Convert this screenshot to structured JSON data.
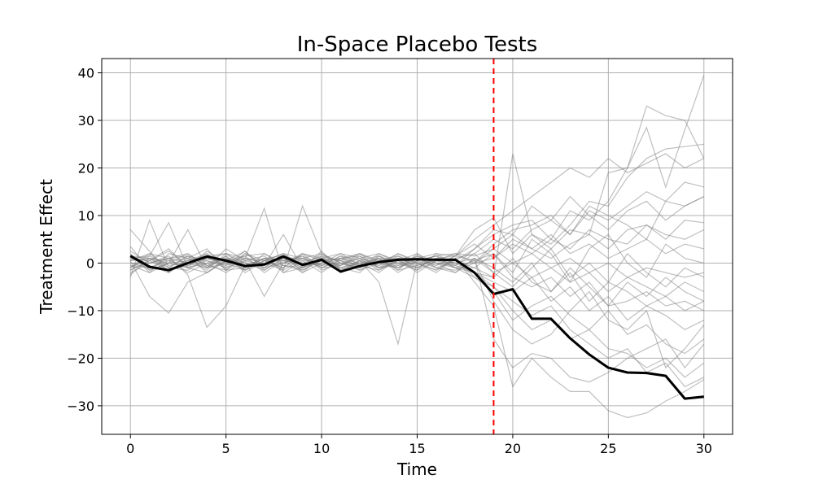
{
  "chart_data": {
    "type": "line",
    "title": "In-Space Placebo Tests",
    "xlabel": "Time",
    "ylabel": "Treatment Effect",
    "xlim": [
      -1.5,
      31.5
    ],
    "ylim": [
      -36,
      43
    ],
    "xticks": [
      0,
      5,
      10,
      15,
      20,
      25,
      30
    ],
    "yticks": [
      -30,
      -20,
      -10,
      0,
      10,
      20,
      30,
      40
    ],
    "grid": true,
    "treatment_time": 19,
    "colors": {
      "treated": "#000000",
      "placebo": "#808080",
      "treatment_line": "#ff0000"
    },
    "x": [
      0,
      1,
      2,
      3,
      4,
      5,
      6,
      7,
      8,
      9,
      10,
      11,
      12,
      13,
      14,
      15,
      16,
      17,
      18,
      19,
      20,
      21,
      22,
      23,
      24,
      25,
      26,
      27,
      28,
      29,
      30
    ],
    "treated": {
      "values": [
        1.5,
        -0.8,
        -1.5,
        0.0,
        1.4,
        0.5,
        -0.6,
        -0.3,
        1.4,
        -0.4,
        0.7,
        -1.8,
        -0.6,
        0.2,
        0.7,
        0.8,
        0.7,
        0.7,
        -2.0,
        -6.5,
        -5.5,
        -11.7,
        -11.7,
        -15.8,
        -19.2,
        -22.0,
        -23.0,
        -23.1,
        -23.7,
        -28.5,
        -28.1
      ]
    },
    "placebos": [
      {
        "values": [
          7.0,
          2.5,
          -2.0,
          1.0,
          3.0,
          -1.5,
          2.0,
          0.5,
          -1.0,
          2.0,
          1.0,
          -0.5,
          1.5,
          -1.0,
          0.5,
          1.0,
          -0.5,
          1.5,
          7.0,
          9.5,
          2.0,
          6.0,
          4.0,
          8.0,
          13.0,
          12.0,
          18.0,
          22.0,
          24.0,
          24.5,
          25.0
        ]
      },
      {
        "values": [
          -3.0,
          9.0,
          -1.0,
          1.5,
          -2.0,
          0.5,
          2.5,
          -1.5,
          1.0,
          -1.0,
          2.0,
          0.0,
          -1.5,
          1.0,
          0.5,
          -1.0,
          1.0,
          -0.5,
          3.0,
          6.0,
          8.0,
          9.0,
          5.0,
          11.0,
          9.0,
          13.0,
          20.0,
          33.0,
          31.0,
          30.0,
          22.0
        ]
      },
      {
        "values": [
          0.5,
          -7.0,
          -10.5,
          -4.0,
          -2.0,
          1.0,
          -1.5,
          0.5,
          2.0,
          1.0,
          -0.5,
          1.5,
          0.5,
          -1.0,
          1.5,
          0.0,
          -1.5,
          1.0,
          -4.0,
          -9.0,
          -26.0,
          -20.0,
          -24.0,
          -27.0,
          -27.0,
          -31.0,
          -32.5,
          -31.5,
          -29.0,
          -27.0,
          -24.5
        ]
      },
      {
        "values": [
          1.0,
          0.5,
          3.0,
          -1.0,
          0.0,
          -2.0,
          0.5,
          -7.0,
          0.0,
          2.0,
          -1.0,
          1.0,
          2.0,
          0.0,
          -1.0,
          1.5,
          0.0,
          -2.0,
          1.0,
          -16.0,
          -22.0,
          -19.0,
          -20.0,
          -24.0,
          -25.0,
          -23.0,
          -20.0,
          -18.0,
          -16.0,
          -22.0,
          -17.0
        ]
      },
      {
        "values": [
          -1.0,
          1.5,
          8.5,
          -1.0,
          2.5,
          0.0,
          1.0,
          11.5,
          -2.0,
          -1.0,
          0.5,
          -0.5,
          1.0,
          2.0,
          0.0,
          -1.0,
          1.0,
          0.0,
          -2.0,
          -3.0,
          23.0,
          6.0,
          3.0,
          7.0,
          6.0,
          19.0,
          20.0,
          28.5,
          16.0,
          28.0,
          39.5
        ]
      },
      {
        "values": [
          2.0,
          -2.0,
          0.0,
          7.0,
          -1.0,
          3.0,
          0.5,
          -0.5,
          6.0,
          -1.0,
          1.0,
          -2.0,
          0.5,
          -4.0,
          -17.0,
          0.5,
          1.5,
          2.0,
          0.0,
          4.0,
          7.0,
          8.0,
          10.0,
          6.0,
          12.0,
          10.0,
          8.0,
          5.0,
          13.0,
          12.0,
          14.0
        ]
      },
      {
        "values": [
          0.0,
          0.0,
          1.5,
          -2.5,
          -13.5,
          -9.0,
          -0.5,
          1.0,
          -1.5,
          12.0,
          2.0,
          0.0,
          -1.0,
          1.0,
          -1.5,
          2.0,
          0.0,
          -1.0,
          0.5,
          -8.0,
          -14.0,
          -17.0,
          -15.0,
          -10.0,
          -6.0,
          -12.0,
          -14.0,
          -10.0,
          -22.0,
          -18.0,
          -13.0
        ]
      },
      {
        "values": [
          -2.5,
          1.0,
          -1.0,
          1.5,
          0.5,
          -1.0,
          2.0,
          -0.5,
          1.0,
          -1.5,
          0.5,
          1.0,
          -1.0,
          2.0,
          0.5,
          -1.5,
          2.0,
          1.5,
          4.0,
          1.0,
          5.0,
          3.0,
          1.0,
          4.0,
          6.0,
          3.0,
          7.0,
          8.0,
          5.0,
          9.0,
          8.5
        ]
      },
      {
        "values": [
          3.5,
          -1.5,
          0.0,
          2.0,
          -1.0,
          1.5,
          -2.0,
          0.5,
          1.0,
          -1.0,
          2.5,
          -1.5,
          0.0,
          1.0,
          -2.0,
          0.5,
          1.5,
          -1.0,
          -3.0,
          -5.0,
          -10.0,
          -14.0,
          -12.0,
          -16.0,
          -14.0,
          -18.0,
          -19.0,
          -22.0,
          -20.0,
          -24.0,
          -21.0
        ]
      },
      {
        "values": [
          -1.5,
          0.5,
          2.5,
          -0.5,
          1.0,
          0.0,
          -1.5,
          2.0,
          0.0,
          1.0,
          -1.0,
          0.5,
          2.0,
          -1.0,
          0.0,
          1.0,
          -1.0,
          0.5,
          -1.0,
          2.0,
          -3.0,
          -5.0,
          -3.0,
          -7.0,
          -4.0,
          -9.0,
          -8.0,
          -6.0,
          -9.0,
          -8.0,
          -10.0
        ]
      },
      {
        "values": [
          1.5,
          1.0,
          -1.5,
          0.5,
          2.0,
          -1.0,
          0.5,
          1.5,
          -2.0,
          0.5,
          1.0,
          -1.0,
          0.5,
          1.5,
          -0.5,
          0.0,
          -1.5,
          1.0,
          2.0,
          5.0,
          3.0,
          7.0,
          9.0,
          6.0,
          11.0,
          9.0,
          12.0,
          15.0,
          13.0,
          17.0,
          16.0
        ]
      },
      {
        "values": [
          -0.5,
          -1.0,
          0.5,
          1.0,
          -1.5,
          2.0,
          0.0,
          -1.0,
          1.5,
          0.0,
          -0.5,
          1.5,
          -1.0,
          0.5,
          1.0,
          -2.0,
          0.5,
          0.0,
          1.0,
          -2.0,
          0.0,
          -3.0,
          -1.0,
          -4.0,
          -2.0,
          -6.0,
          -3.0,
          -5.0,
          -7.0,
          -4.0,
          -6.0
        ]
      },
      {
        "values": [
          0.5,
          2.0,
          -1.0,
          -1.5,
          1.0,
          0.5,
          1.5,
          -2.0,
          0.5,
          1.5,
          -1.5,
          0.0,
          1.0,
          -0.5,
          2.0,
          0.5,
          -1.0,
          -1.5,
          0.0,
          1.0,
          4.0,
          2.0,
          5.0,
          3.0,
          7.0,
          5.0,
          4.0,
          8.0,
          6.0,
          5.0,
          7.0
        ]
      },
      {
        "values": [
          -2.0,
          0.0,
          1.0,
          2.0,
          -0.5,
          -1.5,
          1.0,
          0.5,
          -1.0,
          2.0,
          0.5,
          -1.0,
          -2.0,
          1.5,
          -1.0,
          1.0,
          2.0,
          -0.5,
          -2.0,
          -4.0,
          -6.0,
          -3.0,
          -8.0,
          -5.0,
          -10.0,
          -7.0,
          -12.0,
          -9.0,
          -11.0,
          -14.0,
          -12.0
        ]
      },
      {
        "values": [
          1.0,
          -0.5,
          -2.0,
          0.5,
          1.5,
          2.0,
          -1.0,
          1.0,
          0.5,
          -2.0,
          1.5,
          0.5,
          -0.5,
          -1.5,
          1.0,
          -0.5,
          0.5,
          2.0,
          1.5,
          3.0,
          0.0,
          2.0,
          -1.0,
          1.0,
          -2.0,
          0.0,
          -3.0,
          -1.0,
          -2.0,
          -3.0,
          -2.0
        ]
      },
      {
        "values": [
          -1.0,
          1.0,
          0.0,
          -1.0,
          0.5,
          -0.5,
          2.5,
          -1.0,
          2.0,
          -0.5,
          0.0,
          2.0,
          1.0,
          -1.5,
          0.5,
          2.0,
          -1.0,
          -2.0,
          1.0,
          -1.0,
          -4.0,
          0.0,
          -6.0,
          -2.0,
          -8.0,
          -4.0,
          -6.0,
          -9.0,
          -7.0,
          -10.0,
          -8.0
        ]
      },
      {
        "values": [
          2.5,
          0.0,
          1.0,
          -2.0,
          0.0,
          1.0,
          -0.5,
          0.0,
          -1.5,
          1.0,
          2.0,
          -1.0,
          0.0,
          0.5,
          1.5,
          -1.0,
          1.0,
          0.5,
          3.0,
          7.0,
          6.0,
          3.0,
          6.0,
          2.0,
          4.0,
          1.0,
          3.0,
          5.0,
          2.0,
          4.0,
          3.0
        ]
      },
      {
        "values": [
          -0.5,
          -2.0,
          2.0,
          1.0,
          -1.0,
          0.0,
          1.5,
          2.0,
          -0.5,
          -1.0,
          1.0,
          0.5,
          -1.5,
          0.0,
          2.0,
          0.0,
          -2.0,
          1.0,
          -3.0,
          -6.0,
          -12.0,
          -9.0,
          -7.0,
          -11.0,
          -14.0,
          -10.0,
          -15.0,
          -13.0,
          -17.0,
          -19.0,
          -16.0
        ]
      },
      {
        "values": [
          1.0,
          1.5,
          -0.5,
          0.0,
          2.0,
          -1.5,
          -1.0,
          1.0,
          1.5,
          0.5,
          -2.0,
          1.0,
          1.5,
          -1.0,
          -0.5,
          1.5,
          0.0,
          -0.5,
          2.0,
          -2.0,
          -5.0,
          -1.0,
          3.0,
          -3.0,
          0.0,
          -4.0,
          2.0,
          -2.0,
          -5.0,
          -1.0,
          -3.0
        ]
      },
      {
        "values": [
          0.0,
          -1.0,
          1.0,
          1.5,
          -0.5,
          1.0,
          0.0,
          -1.5,
          1.0,
          1.0,
          -1.0,
          -0.5,
          2.0,
          0.5,
          -1.0,
          0.5,
          1.5,
          0.0,
          0.0,
          3.0,
          6.0,
          12.0,
          9.0,
          14.0,
          10.0,
          7.0,
          11.0,
          13.0,
          9.0,
          12.0,
          14.0
        ]
      },
      {
        "values": [
          -1.5,
          0.5,
          -1.5,
          -0.5,
          1.0,
          2.0,
          1.0,
          0.0,
          -0.5,
          -1.5,
          1.0,
          2.0,
          -0.5,
          1.0,
          -1.5,
          -0.5,
          1.0,
          -1.0,
          -1.0,
          -3.0,
          1.0,
          -4.0,
          -6.0,
          -1.0,
          -5.0,
          -9.0,
          -4.0,
          -7.0,
          -3.0,
          -6.0,
          -8.0
        ]
      },
      {
        "values": [
          0.5,
          1.0,
          0.5,
          -1.0,
          -2.0,
          0.5,
          -1.0,
          1.0,
          0.5,
          0.0,
          1.5,
          -1.5,
          0.5,
          -0.5,
          1.0,
          1.0,
          -0.5,
          1.5,
          0.5,
          2.0,
          -2.0,
          5.0,
          2.0,
          -4.0,
          3.0,
          6.0,
          0.0,
          -3.0,
          4.0,
          1.0,
          0.0
        ]
      },
      {
        "values": [
          1.5,
          -1.5,
          0.0,
          0.5,
          1.0,
          -0.5,
          1.0,
          -1.0,
          0.0,
          1.5,
          -0.5,
          0.0,
          -1.0,
          1.5,
          0.0,
          -1.5,
          0.5,
          -1.0,
          -2.0,
          -5.0,
          -8.0,
          -11.0,
          -9.0,
          -14.0,
          -17.0,
          -20.0,
          -18.0,
          -23.0,
          -21.0,
          -26.0,
          -24.0
        ]
      },
      {
        "values": [
          -1.0,
          2.0,
          1.0,
          0.0,
          -1.0,
          1.5,
          -1.5,
          0.5,
          2.0,
          -2.0,
          0.0,
          1.0,
          0.0,
          -2.0,
          1.0,
          0.0,
          1.0,
          1.5,
          5.0,
          8.0,
          11.0,
          14.0,
          17.0,
          20.0,
          18.0,
          22.0,
          19.0,
          21.0,
          23.0,
          20.0,
          22.0
        ]
      }
    ]
  }
}
